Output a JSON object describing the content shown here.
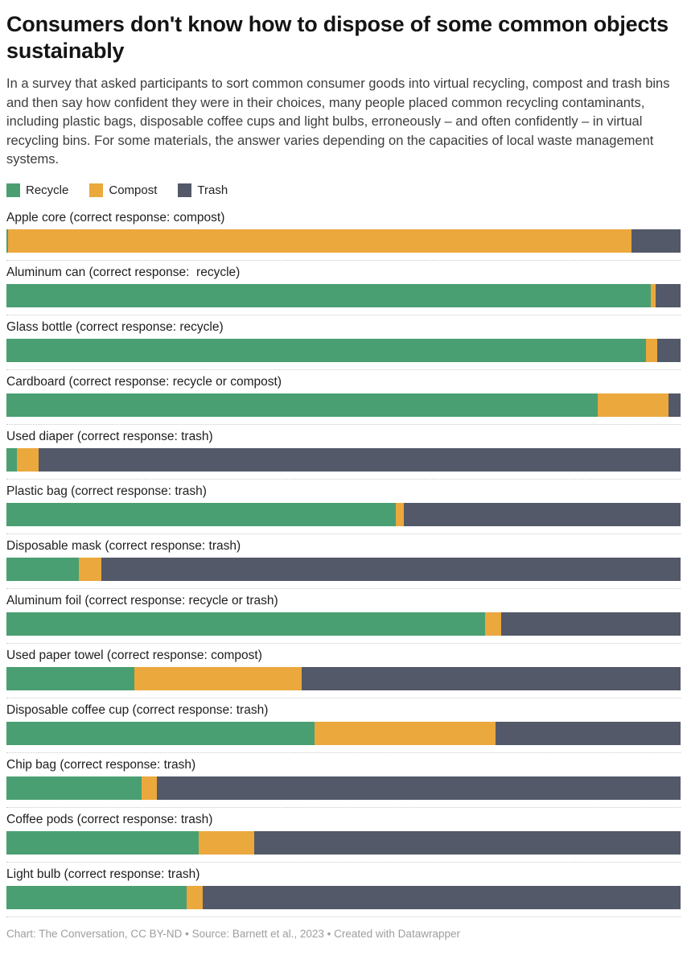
{
  "title": "Consumers don't know how to dispose of some common objects sustainably",
  "description": "In a survey that asked participants to sort common consumer goods into virtual recycling, compost and trash bins and then say how confident they were in their choices, many people placed common recycling contaminants, including plastic bags, disposable coffee cups and light bulbs, erroneously – and often confidently – in virtual recycling bins. For some materials, the answer varies depending on the capacities of local waste management systems.",
  "legend": [
    {
      "label": "Recycle",
      "color": "#4a9f72"
    },
    {
      "label": "Compost",
      "color": "#eba83d"
    },
    {
      "label": "Trash",
      "color": "#535968"
    }
  ],
  "chart_data": {
    "type": "bar",
    "stacked": true,
    "orientation": "horizontal",
    "unit": "percent",
    "xlim": [
      0,
      100
    ],
    "grid": false,
    "legend_position": "top",
    "categories": [
      "Apple core (correct response: compost)",
      "Aluminum can (correct response:  recycle)",
      "Glass bottle (correct response: recycle)",
      "Cardboard (correct response: recycle or compost)",
      "Used diaper (correct response: trash)",
      "Plastic bag (correct response: trash)",
      "Disposable mask (correct response: trash)",
      "Aluminum foil (correct response: recycle or trash)",
      "Used paper towel (correct response: compost)",
      "Disposable coffee cup (correct response: trash)",
      "Chip bag (correct response: trash)",
      "Coffee pods (correct response: trash)",
      "Light bulb (correct response: trash)"
    ],
    "series": [
      {
        "name": "Recycle",
        "color": "#4a9f72",
        "values": [
          0.2,
          95.6,
          94.9,
          87.7,
          1.5,
          57.7,
          10.7,
          71.0,
          19.0,
          45.7,
          20.1,
          28.5,
          26.7
        ]
      },
      {
        "name": "Compost",
        "color": "#eba83d",
        "values": [
          92.5,
          0.7,
          1.6,
          10.5,
          3.3,
          1.3,
          3.4,
          2.4,
          24.8,
          26.9,
          2.2,
          8.3,
          2.4
        ]
      },
      {
        "name": "Trash",
        "color": "#535968",
        "values": [
          7.3,
          3.7,
          3.5,
          1.8,
          95.2,
          41.0,
          85.9,
          26.6,
          56.2,
          27.4,
          77.7,
          63.2,
          70.9
        ]
      }
    ]
  },
  "footer": "Chart: The Conversation, CC BY-ND • Source: Barnett et al., 2023 • Created with Datawrapper"
}
